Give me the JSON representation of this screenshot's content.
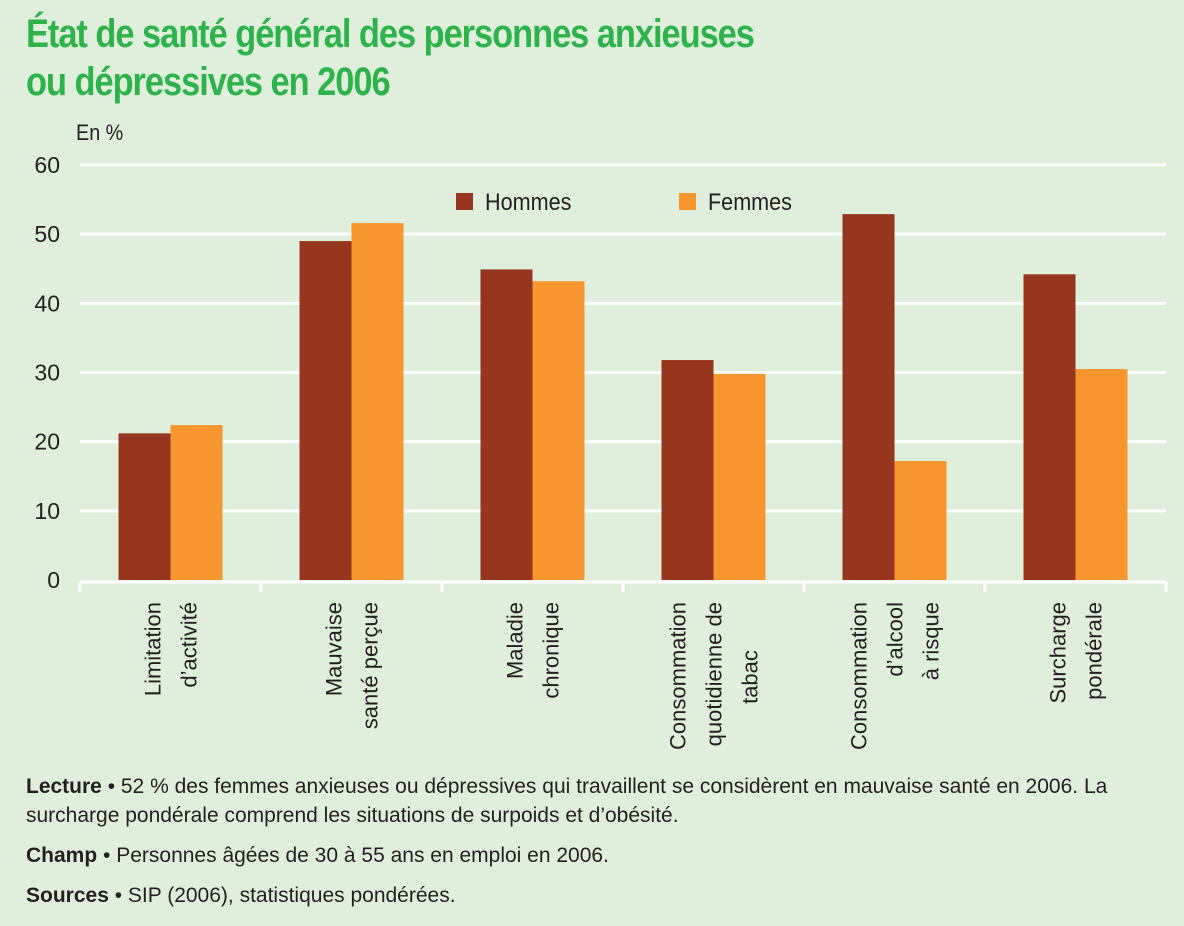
{
  "title_lines": [
    "État de santé général des personnes anxieuses",
    "ou dépressives en 2006"
  ],
  "colors": {
    "background": "#dfefdc",
    "title": "#2db34a",
    "hommes": "#96361e",
    "femmes": "#f7962e",
    "grid": "#ffffff",
    "text": "#231f20"
  },
  "chart_data": {
    "type": "bar",
    "title": "État de santé général des personnes anxieuses ou dépressives en 2006",
    "ylabel": "En %",
    "xlabel": "",
    "ylim": [
      0,
      60
    ],
    "yticks": [
      0,
      10,
      20,
      30,
      40,
      50,
      60
    ],
    "grid": true,
    "legend_position": "top-center",
    "categories": [
      [
        "Limitation",
        "d’activité"
      ],
      [
        "Mauvaise",
        "santé perçue"
      ],
      [
        "Maladie",
        "chronique"
      ],
      [
        "Consommation",
        "quotidienne de",
        "tabac"
      ],
      [
        "Consommation",
        "d’alcool",
        "à risque"
      ],
      [
        "Surcharge",
        "pondérale"
      ]
    ],
    "series": [
      {
        "name": "Hommes",
        "values": [
          21.2,
          49.0,
          44.9,
          31.8,
          52.9,
          44.2
        ]
      },
      {
        "name": "Femmes",
        "values": [
          22.4,
          51.6,
          43.2,
          29.8,
          17.2,
          30.5
        ]
      }
    ]
  },
  "notes": [
    {
      "label": "Lecture",
      "text": " • 52 % des femmes anxieuses ou dépressives qui travaillent se considèrent en mauvaise santé en 2006. La surcharge pondérale comprend les situations de surpoids et d’obésité."
    },
    {
      "label": "Champ",
      "text": " • Personnes âgées de 30 à 55 ans en emploi en 2006."
    },
    {
      "label": "Sources",
      "text": " • SIP (2006), statistiques pondérées."
    }
  ]
}
